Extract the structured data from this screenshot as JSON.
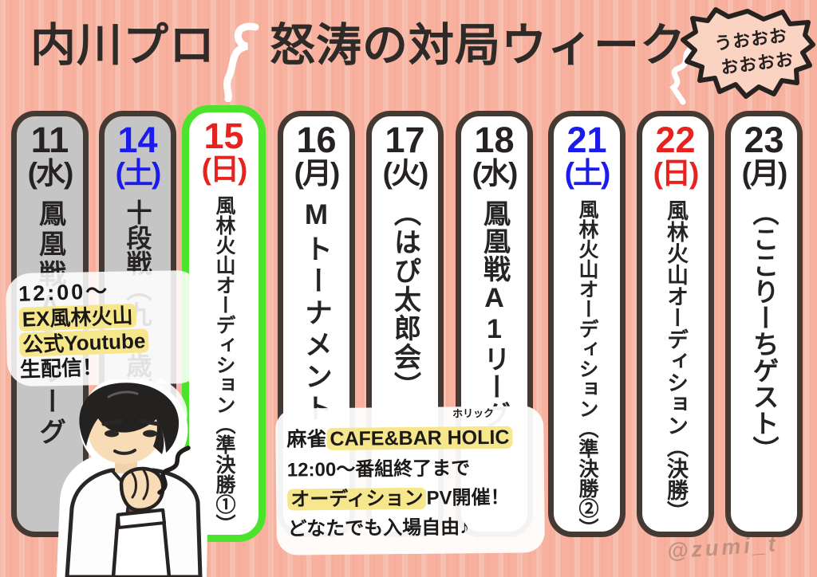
{
  "title": {
    "part1": "内川プロ",
    "part2": "怒涛の対局ウィーク"
  },
  "scream_bubble": {
    "line1": "うおおお",
    "line2": "おおおお"
  },
  "columns": [
    {
      "date": "11",
      "day": "(水)",
      "event": "鳳凰戦A1リーグ",
      "color": "#262223",
      "style": "past"
    },
    {
      "date": "14",
      "day": "(土)",
      "event": "十段戦（九　歳）",
      "color": "#1b1bee",
      "style": "past"
    },
    {
      "date": "15",
      "day": "(日)",
      "event": "風林火山オーディション（準決勝①）",
      "color": "#e8231f",
      "style": "highlight"
    },
    {
      "date": "16",
      "day": "(月)",
      "event": "Mトーナメント",
      "color": "#262223",
      "style": "normal"
    },
    {
      "date": "17",
      "day": "(火)",
      "event": "（はぴ太郎会）",
      "color": "#262223",
      "style": "normal"
    },
    {
      "date": "18",
      "day": "(水)",
      "event": "鳳凰戦A1リーグ",
      "color": "#262223",
      "style": "normal"
    },
    {
      "date": "21",
      "day": "(土)",
      "event": "風林火山オーディション（準決勝②）",
      "color": "#1b1bee",
      "style": "normal"
    },
    {
      "date": "22",
      "day": "(日)",
      "event": "風林火山オーディション（決勝）",
      "color": "#e8231f",
      "style": "normal"
    },
    {
      "date": "23",
      "day": "(月)",
      "event": "（ここりーちゲスト）",
      "color": "#262223",
      "style": "normal"
    }
  ],
  "stream_note": {
    "line1": "12:00〜",
    "line2": "EX風林火山",
    "line3": "公式Youtube",
    "line4": "生配信！"
  },
  "venue_note": {
    "furigana": "ホリック",
    "line1_head": "麻雀",
    "line1_highlight": "CAFE&BAR HOLIC",
    "line2": "12:00〜番組終了まで",
    "line3_highlight": "オーディション",
    "line3_rest": "PV開催！",
    "line4": "どなたでも入場自由♪"
  },
  "watermark": "@zumi_t",
  "colors": {
    "background_salmon": "#f7b19e",
    "border_brown": "#453a33",
    "past_grey": "#c6c5c5",
    "highlight_green": "#4ce32d",
    "saturday_blue": "#1b1bee",
    "sunday_red": "#e8231f",
    "marker_yellow": "#f7e78c"
  }
}
